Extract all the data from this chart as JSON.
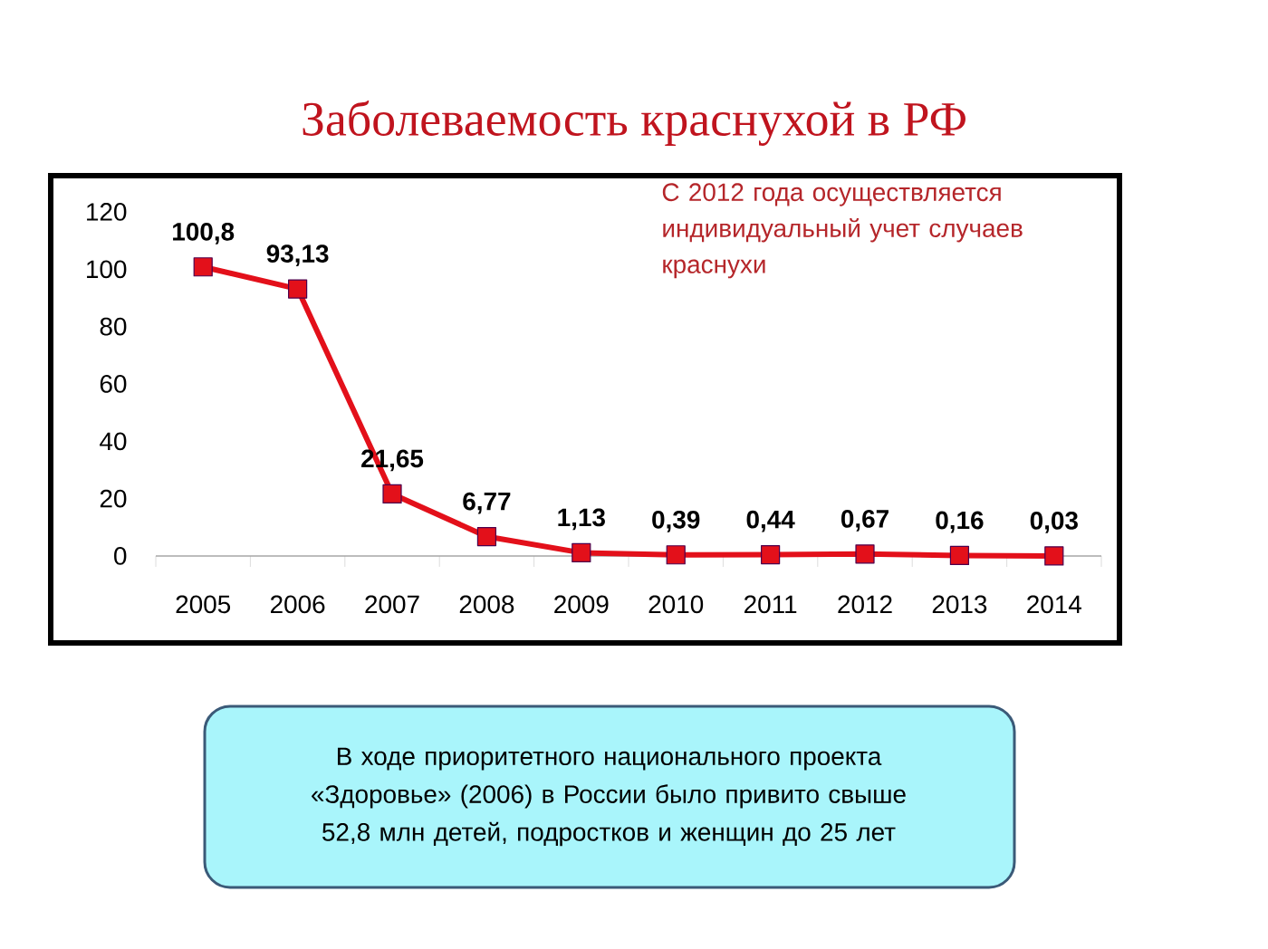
{
  "chart_data": {
    "type": "line",
    "title": "Заболеваемость краснухой в РФ",
    "categories": [
      "2005",
      "2006",
      "2007",
      "2008",
      "2009",
      "2010",
      "2011",
      "2012",
      "2013",
      "2014"
    ],
    "values": [
      100.8,
      93.13,
      21.65,
      6.77,
      1.13,
      0.39,
      0.44,
      0.67,
      0.16,
      0.03
    ],
    "value_labels": [
      "100,8",
      "93,13",
      "21,65",
      "6,77",
      "1,13",
      "0,39",
      "0,44",
      "0,67",
      "0,16",
      "0,03"
    ],
    "color": "#e3101a",
    "marker": "square",
    "ylim": [
      0,
      120
    ],
    "yticks": [
      0,
      20,
      40,
      60,
      80,
      100,
      120
    ],
    "grid": false,
    "annotations": [
      "С 2012 года осуществляется индивидуальный  учет случаев краснухи",
      "В ходе приоритетного национального проекта «Здоровье» (2006) в России было привито свыше 52,8 млн детей, подростков и женщин до 25 лет"
    ]
  }
}
